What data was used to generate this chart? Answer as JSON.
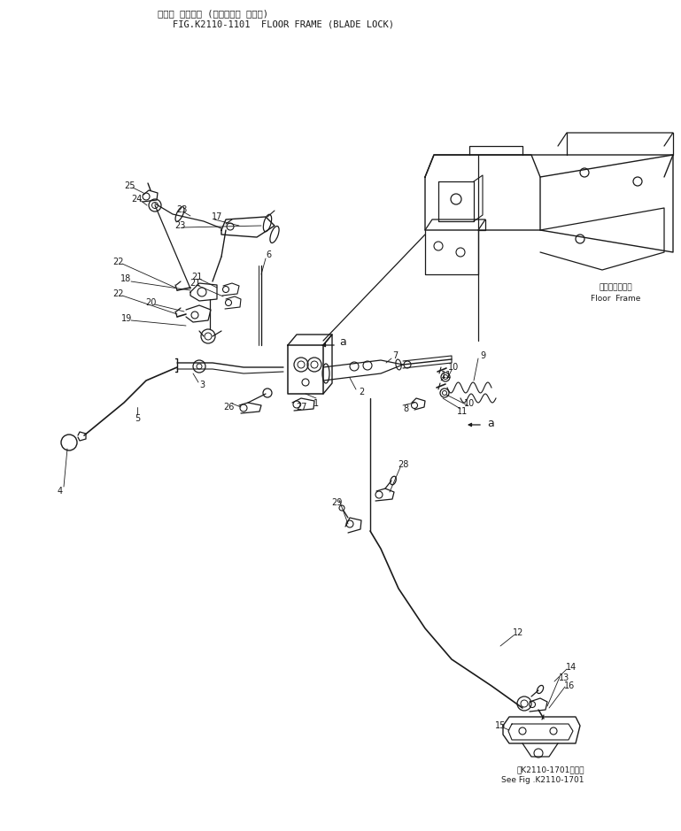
{
  "title_jp": "フロア フレーム (ブレード・ ロック)",
  "title_en": "FIG.K2110-1101  FLOOR FRAME (BLADE LOCK)",
  "bg_color": "#ffffff",
  "line_color": "#1a1a1a",
  "text_color": "#1a1a1a",
  "fig_width": 7.69,
  "fig_height": 9.39,
  "dpi": 100,
  "floor_frame_label_jp": "フロアフレーム",
  "floor_frame_label_en": "Floor  Frame",
  "see_fig_label": "第K2110-1701図参照",
  "see_fig_label2": "See Fig .K2110-1701"
}
